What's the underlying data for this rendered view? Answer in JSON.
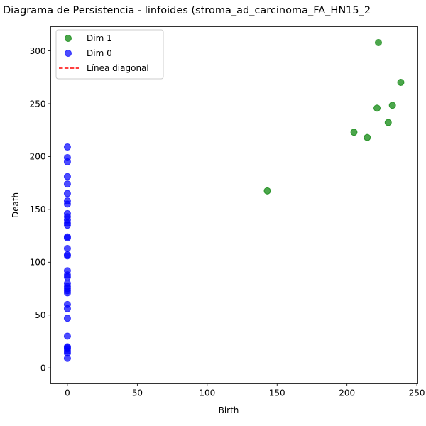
{
  "chart_data": {
    "type": "scatter",
    "title": "Diagrama de Persistencia - linfoides (stroma_ad_carcinoma_FA_HN15_2",
    "xlabel": "Birth",
    "ylabel": "Death",
    "xlim": [
      -11.9,
      250.7
    ],
    "ylim": [
      -15.0,
      322.9
    ],
    "xticks": [
      0,
      50,
      100,
      150,
      200,
      250
    ],
    "yticks": [
      0,
      50,
      100,
      150,
      200,
      250,
      300
    ],
    "grid": false,
    "legend_position": "top-left",
    "series": [
      {
        "name": "Dim 1",
        "color": "#008000",
        "points": [
          [
            143.0,
            167.5
          ],
          [
            205.0,
            223.0
          ],
          [
            214.5,
            218.0
          ],
          [
            221.5,
            245.8
          ],
          [
            222.5,
            307.8
          ],
          [
            229.5,
            232.2
          ],
          [
            232.5,
            248.5
          ],
          [
            238.5,
            270.2
          ]
        ]
      },
      {
        "name": "Dim 0",
        "color": "#0000ff",
        "x": 0,
        "y": [
          9,
          14,
          16,
          18,
          19,
          20,
          30,
          47,
          56,
          60,
          71,
          73,
          75,
          77,
          80,
          86,
          88,
          92,
          106,
          107,
          113,
          123,
          124,
          135,
          137,
          140,
          143,
          146,
          155,
          158,
          165,
          174,
          181,
          195,
          199,
          209
        ]
      }
    ],
    "lines": [
      {
        "name": "Línea diagonal",
        "color": "#ff0000",
        "style": "dashed"
      }
    ]
  }
}
